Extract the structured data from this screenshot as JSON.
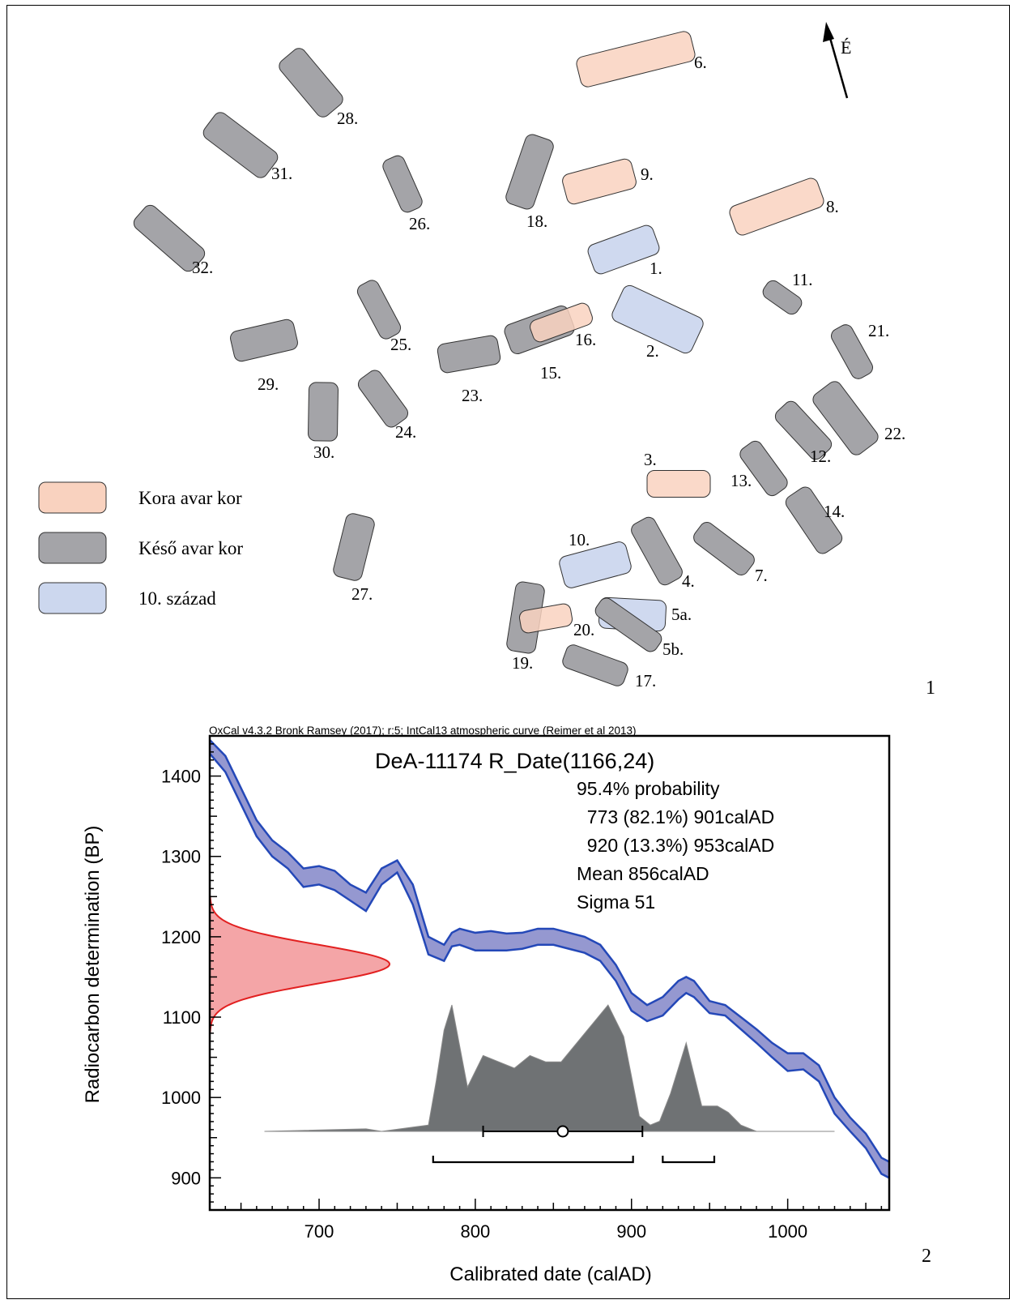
{
  "panel1": {
    "panel_number": "1",
    "north_label": "É",
    "legend": [
      {
        "label": "Kora avar kor",
        "color": "#f9d2bf"
      },
      {
        "label": "Késő avar kor",
        "color": "#a4a4a8"
      },
      {
        "label": "10. század",
        "color": "#ccd7ee"
      }
    ],
    "graves": [
      {
        "label": "6.",
        "period": "early"
      },
      {
        "label": "28.",
        "period": "late"
      },
      {
        "label": "31.",
        "period": "late"
      },
      {
        "label": "26.",
        "period": "late"
      },
      {
        "label": "18.",
        "period": "late"
      },
      {
        "label": "9.",
        "period": "early"
      },
      {
        "label": "8.",
        "period": "early"
      },
      {
        "label": "1.",
        "period": "c10"
      },
      {
        "label": "32.",
        "period": "late"
      },
      {
        "label": "11.",
        "period": "late"
      },
      {
        "label": "25.",
        "period": "late"
      },
      {
        "label": "29.",
        "period": "late"
      },
      {
        "label": "23.",
        "period": "late"
      },
      {
        "label": "15.",
        "period": "late"
      },
      {
        "label": "16.",
        "period": "early"
      },
      {
        "label": "2.",
        "period": "c10"
      },
      {
        "label": "21.",
        "period": "late"
      },
      {
        "label": "30.",
        "period": "late"
      },
      {
        "label": "24.",
        "period": "late"
      },
      {
        "label": "12.",
        "period": "late"
      },
      {
        "label": "22.",
        "period": "late"
      },
      {
        "label": "13.",
        "period": "late"
      },
      {
        "label": "3.",
        "period": "early"
      },
      {
        "label": "14.",
        "period": "late"
      },
      {
        "label": "27.",
        "period": "late"
      },
      {
        "label": "10.",
        "period": "c10"
      },
      {
        "label": "4.",
        "period": "late"
      },
      {
        "label": "7.",
        "period": "late"
      },
      {
        "label": "19.",
        "period": "late"
      },
      {
        "label": "20.",
        "period": "early"
      },
      {
        "label": "5a.",
        "period": "c10"
      },
      {
        "label": "5b.",
        "period": "late"
      },
      {
        "label": "17.",
        "period": "late"
      }
    ]
  },
  "panel2": {
    "panel_number": "2",
    "header": "OxCal v4.3.2 Bronk Ramsey (2017); r:5; IntCal13 atmospheric curve (Reimer et al 2013)",
    "title": "DeA-11174 R_Date(1166,24)",
    "stats": [
      "95.4% probability",
      "  773 (82.1%) 901calAD",
      "  920 (13.3%) 953calAD",
      "Mean 856calAD",
      "Sigma 51"
    ],
    "xlabel": "Calibrated date (calAD)",
    "ylabel": "Radiocarbon determination (BP)",
    "xticks": [
      "700",
      "800",
      "900",
      "1000"
    ],
    "yticks": [
      "1400",
      "1300",
      "1200",
      "1100",
      "1000",
      "900"
    ]
  },
  "chart_data": {
    "type": "line",
    "title": "DeA-11174 R_Date(1166,24)",
    "xlabel": "Calibrated date (calAD)",
    "ylabel": "Radiocarbon determination (BP)",
    "xlim": [
      630,
      1065
    ],
    "ylim": [
      860,
      1450
    ],
    "grid": false,
    "colors": {
      "curve": "#9598d0",
      "curve_edge": "#2448b8",
      "date": "#f4a5a7",
      "date_edge": "#e22020",
      "posterior": "#6f7274"
    },
    "calibration_curve": {
      "x": [
        630,
        640,
        650,
        660,
        670,
        680,
        690,
        700,
        710,
        720,
        730,
        740,
        750,
        760,
        770,
        780,
        785,
        790,
        800,
        810,
        820,
        830,
        840,
        850,
        860,
        870,
        880,
        890,
        900,
        910,
        920,
        930,
        935,
        940,
        950,
        960,
        970,
        980,
        990,
        1000,
        1010,
        1020,
        1030,
        1040,
        1050,
        1060,
        1065
      ],
      "upper": [
        1445,
        1425,
        1385,
        1345,
        1320,
        1305,
        1285,
        1288,
        1282,
        1265,
        1255,
        1285,
        1295,
        1265,
        1200,
        1190,
        1205,
        1210,
        1205,
        1207,
        1204,
        1205,
        1210,
        1210,
        1205,
        1200,
        1190,
        1165,
        1130,
        1115,
        1125,
        1145,
        1150,
        1145,
        1120,
        1115,
        1100,
        1085,
        1068,
        1055,
        1055,
        1040,
        1000,
        975,
        955,
        925,
        920
      ],
      "lower": [
        1428,
        1405,
        1365,
        1325,
        1300,
        1285,
        1262,
        1265,
        1258,
        1245,
        1232,
        1265,
        1280,
        1240,
        1178,
        1170,
        1188,
        1190,
        1183,
        1183,
        1183,
        1185,
        1190,
        1190,
        1185,
        1180,
        1170,
        1145,
        1108,
        1095,
        1102,
        1122,
        1130,
        1125,
        1105,
        1102,
        1085,
        1068,
        1050,
        1033,
        1035,
        1020,
        980,
        958,
        937,
        905,
        900
      ]
    },
    "radiocarbon_date": {
      "mean_bp": 1166,
      "sigma_bp": 24
    },
    "posterior": {
      "x": [
        665,
        730,
        740,
        770,
        775,
        780,
        785,
        795,
        805,
        815,
        825,
        835,
        845,
        855,
        865,
        875,
        885,
        895,
        905,
        912,
        918,
        925,
        935,
        945,
        955,
        962,
        970,
        980,
        1030
      ],
      "density": [
        0.0,
        0.02,
        0.0,
        0.05,
        0.4,
        0.8,
        1.0,
        0.35,
        0.6,
        0.55,
        0.5,
        0.6,
        0.55,
        0.55,
        0.7,
        0.85,
        1.0,
        0.75,
        0.12,
        0.05,
        0.08,
        0.3,
        0.7,
        0.2,
        0.2,
        0.15,
        0.05,
        0.0,
        0.0
      ]
    },
    "mean": 856,
    "sigma_range": [
      805,
      907
    ],
    "hpd_95_4": [
      [
        773,
        901
      ],
      [
        920,
        953
      ]
    ]
  }
}
